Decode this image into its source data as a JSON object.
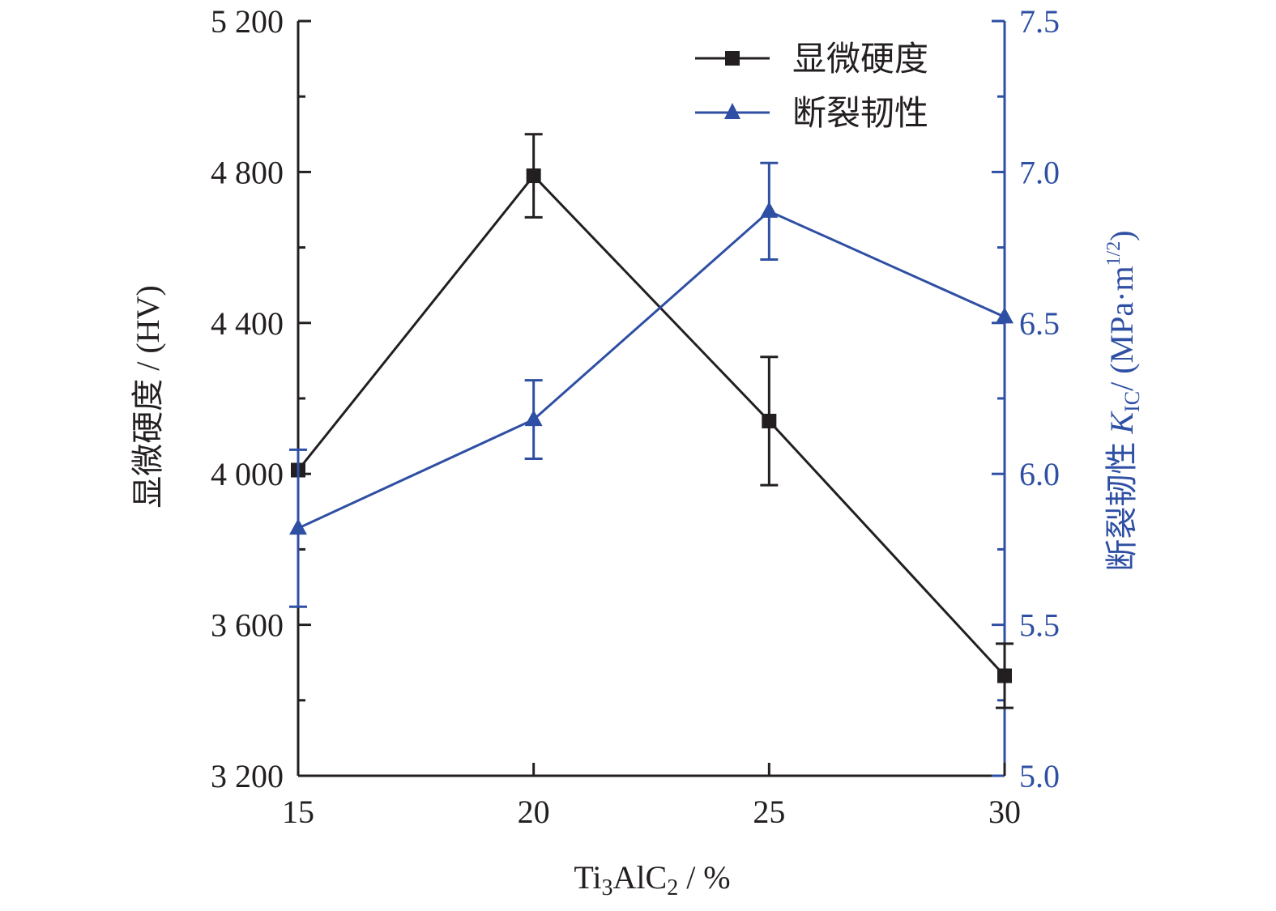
{
  "chart_data": {
    "type": "line",
    "colors": {
      "hardness": "#231f20",
      "toughness": "#2e4fa3"
    },
    "x": [
      15,
      20,
      25,
      30
    ],
    "x_ticks": [
      "15",
      "20",
      "25",
      "30"
    ],
    "xlim": [
      15,
      30
    ],
    "xlabel": {
      "prefix": "Ti",
      "sub1": "3",
      "mid": "AlC",
      "sub2": "2",
      "suffix": " / %"
    },
    "y_left": {
      "label": "显微硬度 / (HV)",
      "ylim": [
        3200,
        5200
      ],
      "ticks": [
        3200,
        3600,
        4000,
        4400,
        4800,
        5200
      ],
      "tick_labels": [
        "3 200",
        "3 600",
        "4 000",
        "4 400",
        "4 800",
        "5 200"
      ]
    },
    "y_right": {
      "label": {
        "prefix": "断裂韧性 ",
        "var": "K",
        "sub": "IC",
        "mid": "/ (MPa·m",
        "sup": "1/2",
        "suffix": ")"
      },
      "ylim": [
        5.0,
        7.5
      ],
      "ticks": [
        5.0,
        5.5,
        6.0,
        6.5,
        7.0,
        7.5
      ],
      "tick_labels": [
        "5.0",
        "5.5",
        "6.0",
        "6.5",
        "7.0",
        "7.5"
      ]
    },
    "series": [
      {
        "name": "显微硬度",
        "axis": "left",
        "marker": "square",
        "values": [
          4010,
          4790,
          4140,
          3465
        ],
        "errors": [
          null,
          110,
          170,
          85
        ]
      },
      {
        "name": "断裂韧性",
        "axis": "right",
        "marker": "triangle",
        "values": [
          5.82,
          6.18,
          6.87,
          6.52
        ],
        "errors": [
          0.26,
          0.13,
          0.16,
          null
        ]
      }
    ],
    "legend_position": "top-right",
    "grid": false
  }
}
